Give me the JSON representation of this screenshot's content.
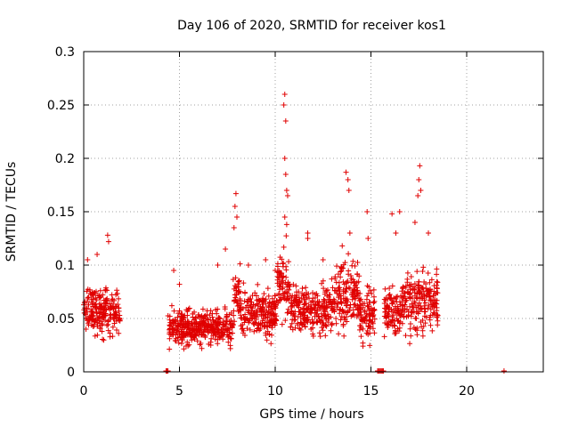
{
  "chart_data": {
    "type": "scatter",
    "title": "Day 106 of 2020, SRMTID for receiver kos1",
    "xlabel": "GPS time / hours",
    "ylabel": "SRMTID / TECUs",
    "xlim": [
      0,
      24
    ],
    "ylim": [
      0,
      0.3
    ],
    "x_ticks": [
      0,
      5,
      10,
      15,
      20
    ],
    "y_ticks": [
      0,
      0.05,
      0.1,
      0.15,
      0.2,
      0.25,
      0.3
    ],
    "x_tick_labels": [
      "0",
      "5",
      "10",
      "15",
      "20"
    ],
    "y_tick_labels": [
      "0",
      "0.05",
      "0.1",
      "0.15",
      "0.2",
      "0.25",
      "0.3"
    ],
    "grid": true,
    "marker": "+",
    "series_color": "#e00000",
    "series": [
      {
        "name": "SRMTID",
        "segments": [
          {
            "start": 0.0,
            "end": 1.9,
            "mean": 0.058,
            "spread": 0.02,
            "peaks": [
              [
                0.2,
                0.105
              ],
              [
                0.7,
                0.11
              ],
              [
                1.25,
                0.128
              ],
              [
                1.3,
                0.122
              ]
            ]
          },
          {
            "start": 4.4,
            "end": 7.8,
            "mean": 0.042,
            "spread": 0.014,
            "peaks": [
              [
                4.7,
                0.095
              ],
              [
                5.0,
                0.082
              ],
              [
                7.0,
                0.1
              ],
              [
                7.4,
                0.115
              ]
            ]
          },
          {
            "start": 7.8,
            "end": 8.2,
            "mean": 0.07,
            "spread": 0.025,
            "peaks": [
              [
                7.9,
                0.155
              ],
              [
                7.95,
                0.167
              ],
              [
                8.0,
                0.145
              ],
              [
                7.85,
                0.135
              ]
            ]
          },
          {
            "start": 8.2,
            "end": 10.1,
            "mean": 0.055,
            "spread": 0.02,
            "peaks": [
              [
                8.6,
                0.1
              ],
              [
                9.5,
                0.105
              ],
              [
                10.0,
                0.095
              ]
            ]
          },
          {
            "start": 10.1,
            "end": 10.8,
            "mean": 0.08,
            "spread": 0.03,
            "peaks": [
              [
                10.5,
                0.26
              ],
              [
                10.45,
                0.25
              ],
              [
                10.55,
                0.235
              ],
              [
                10.5,
                0.2
              ],
              [
                10.55,
                0.185
              ],
              [
                10.6,
                0.17
              ],
              [
                10.65,
                0.165
              ],
              [
                10.5,
                0.145
              ],
              [
                10.6,
                0.138
              ]
            ]
          },
          {
            "start": 10.8,
            "end": 13.0,
            "mean": 0.058,
            "spread": 0.02,
            "peaks": [
              [
                11.7,
                0.13
              ],
              [
                11.7,
                0.125
              ],
              [
                12.5,
                0.105
              ]
            ]
          },
          {
            "start": 13.0,
            "end": 14.4,
            "mean": 0.07,
            "spread": 0.028,
            "peaks": [
              [
                13.7,
                0.187
              ],
              [
                13.8,
                0.18
              ],
              [
                13.85,
                0.17
              ],
              [
                13.5,
                0.118
              ],
              [
                13.9,
                0.13
              ]
            ]
          },
          {
            "start": 14.4,
            "end": 15.2,
            "mean": 0.055,
            "spread": 0.022,
            "peaks": [
              [
                14.8,
                0.15
              ],
              [
                14.85,
                0.125
              ]
            ]
          },
          {
            "start": 15.7,
            "end": 16.6,
            "mean": 0.055,
            "spread": 0.02,
            "peaks": [
              [
                16.1,
                0.148
              ],
              [
                16.3,
                0.13
              ],
              [
                16.5,
                0.15
              ]
            ]
          },
          {
            "start": 16.6,
            "end": 18.5,
            "mean": 0.065,
            "spread": 0.025,
            "peaks": [
              [
                17.55,
                0.193
              ],
              [
                17.5,
                0.18
              ],
              [
                17.6,
                0.17
              ],
              [
                17.45,
                0.165
              ],
              [
                17.3,
                0.14
              ],
              [
                18.0,
                0.13
              ]
            ]
          }
        ],
        "near_zero_points": [
          4.3,
          4.35,
          4.4,
          15.35,
          15.4,
          15.45,
          15.5,
          15.55,
          15.6,
          15.65,
          21.95
        ]
      }
    ]
  }
}
